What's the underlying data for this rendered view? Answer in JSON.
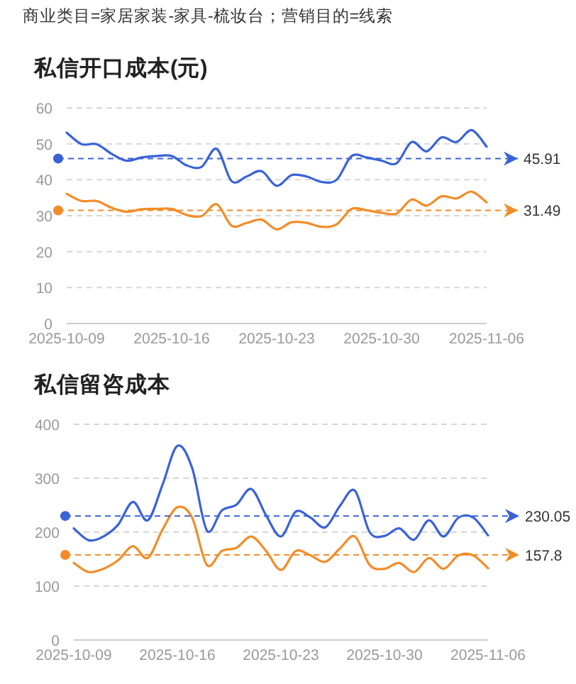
{
  "chart_data": [
    {
      "type": "line",
      "title": "私信开口成本(元)",
      "annotations": [
        "商业类目=家居家装-家具-梳妆台；营销目的=线索"
      ],
      "x": [
        "2025-10-09",
        "2025-10-10",
        "2025-10-11",
        "2025-10-12",
        "2025-10-13",
        "2025-10-14",
        "2025-10-15",
        "2025-10-16",
        "2025-10-17",
        "2025-10-18",
        "2025-10-19",
        "2025-10-20",
        "2025-10-21",
        "2025-10-22",
        "2025-10-23",
        "2025-10-24",
        "2025-10-25",
        "2025-10-26",
        "2025-10-27",
        "2025-10-28",
        "2025-10-29",
        "2025-10-30",
        "2025-10-31",
        "2025-11-01",
        "2025-11-02",
        "2025-11-03",
        "2025-11-04",
        "2025-11-05",
        "2025-11-06"
      ],
      "series": [
        {
          "color": "#3a62d7",
          "values": [
            53.1,
            49.9,
            49.9,
            47.2,
            45.3,
            46.2,
            46.6,
            46.6,
            44.0,
            43.6,
            48.6,
            39.6,
            40.9,
            42.4,
            38.3,
            41.3,
            40.9,
            39.4,
            40.0,
            46.6,
            46.2,
            45.3,
            44.6,
            50.5,
            47.9,
            51.8,
            50.5,
            53.8,
            49.2
          ]
        },
        {
          "color": "#f28c28",
          "values": [
            36.1,
            34.1,
            34.1,
            32.2,
            31.1,
            31.8,
            31.9,
            31.9,
            30.2,
            29.9,
            33.2,
            27.2,
            28.0,
            28.9,
            26.2,
            28.2,
            28.0,
            26.9,
            27.6,
            31.9,
            31.5,
            30.8,
            30.6,
            34.5,
            32.8,
            35.4,
            34.8,
            36.7,
            33.7
          ]
        }
      ],
      "xlim": [
        "2025-10-09",
        "2025-11-06"
      ],
      "xticks": [
        "2025-10-09",
        "2025-10-16",
        "2025-10-23",
        "2025-10-30",
        "2025-11-06"
      ],
      "ylim": [
        0,
        60
      ],
      "yticks": [
        0,
        10,
        20,
        30,
        40,
        50,
        60
      ],
      "grid": "y",
      "line_style": "solid",
      "marker": "none",
      "ref_lines": [
        {
          "axis": "y",
          "value": 45.91,
          "label": "45.91",
          "color": "#3a62d7",
          "line_style": "dashed"
        },
        {
          "axis": "y",
          "value": 31.49,
          "label": "31.49",
          "color": "#f28c28",
          "line_style": "dashed"
        }
      ]
    },
    {
      "type": "line",
      "title": "私信留咨成本",
      "x": [
        "2025-10-09",
        "2025-10-10",
        "2025-10-11",
        "2025-10-12",
        "2025-10-13",
        "2025-10-14",
        "2025-10-15",
        "2025-10-16",
        "2025-10-17",
        "2025-10-18",
        "2025-10-19",
        "2025-10-20",
        "2025-10-21",
        "2025-10-22",
        "2025-10-23",
        "2025-10-24",
        "2025-10-25",
        "2025-10-26",
        "2025-10-27",
        "2025-10-28",
        "2025-10-29",
        "2025-10-30",
        "2025-10-31",
        "2025-11-01",
        "2025-11-02",
        "2025-11-03",
        "2025-11-04",
        "2025-11-05",
        "2025-11-06"
      ],
      "series": [
        {
          "color": "#3a62d7",
          "values": [
            207,
            185,
            192,
            214,
            256,
            222,
            288,
            360,
            319,
            203,
            240,
            251,
            280,
            231,
            192,
            238,
            227,
            209,
            249,
            277,
            200,
            193,
            207,
            186,
            222,
            192,
            227,
            227,
            194
          ]
        },
        {
          "color": "#f28c28",
          "values": [
            143,
            126,
            132,
            148,
            174,
            152,
            205,
            246,
            227,
            139,
            165,
            171,
            192,
            165,
            130,
            165,
            157,
            145,
            170,
            192,
            139,
            132,
            143,
            126,
            152,
            132,
            157,
            157,
            133
          ]
        }
      ],
      "xlim": [
        "2025-10-09",
        "2025-11-06"
      ],
      "xticks": [
        "2025-10-09",
        "2025-10-16",
        "2025-10-23",
        "2025-10-30",
        "2025-11-06"
      ],
      "ylim": [
        0,
        400
      ],
      "yticks": [
        0,
        100,
        200,
        300,
        400
      ],
      "grid": "y",
      "line_style": "solid",
      "marker": "none",
      "ref_lines": [
        {
          "axis": "y",
          "value": 230.05,
          "label": "230.05",
          "color": "#3a62d7",
          "line_style": "dashed"
        },
        {
          "axis": "y",
          "value": 157.8,
          "label": "157.8",
          "color": "#f28c28",
          "line_style": "dashed"
        }
      ]
    }
  ]
}
